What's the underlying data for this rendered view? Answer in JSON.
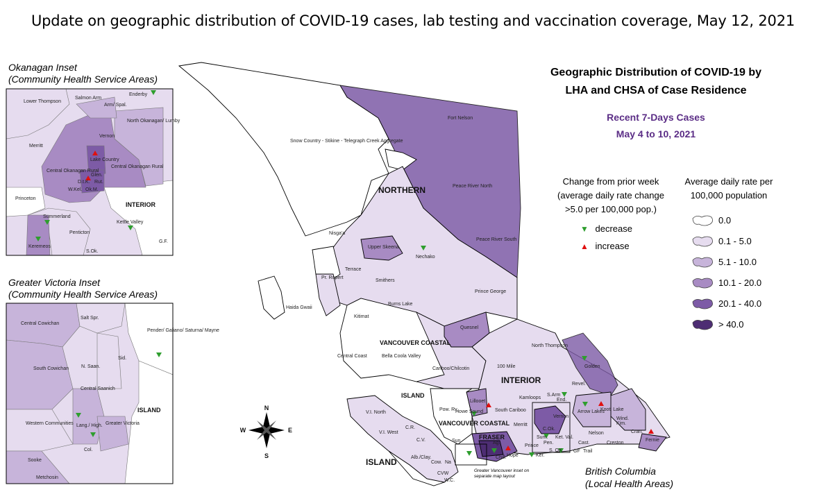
{
  "page_title": "Update on geographic distribution of COVID-19 cases, lab testing and vaccination coverage, May 12, 2021",
  "map_title": {
    "line1": "Geographic Distribution of COVID-19 by",
    "line2": "LHA and CHSA of Case Residence",
    "sub1": "Recent 7-Days Cases",
    "sub2": "May 4 to 10, 2021"
  },
  "colors": {
    "class0": "#ffffff",
    "class1": "#e6dcef",
    "class2": "#c7b4da",
    "class3": "#a88bc3",
    "class4": "#7d5ba6",
    "class5": "#4d2d73",
    "decrease": "#2e9e2e",
    "increase": "#e01010",
    "title_purple": "#5b2d86"
  },
  "change_legend": {
    "title1": "Change from prior week",
    "title2": "(average daily rate change",
    "title3": ">5.0 per 100,000 pop.)",
    "decrease_label": "decrease",
    "increase_label": "increase"
  },
  "rate_legend": {
    "title1": "Average daily rate per",
    "title2": "100,000 population",
    "items": [
      "0.0",
      "0.1 - 5.0",
      "5.1 - 10.0",
      "10.1 - 20.0",
      "20.1 - 40.0",
      "> 40.0"
    ]
  },
  "okanagan_inset": {
    "title1": "Okanagan Inset",
    "title2": "(Community Health Service Areas)",
    "labels": [
      "Lower Thompson",
      "Salmon Arm",
      "Enderby",
      "Arm/ Spal.",
      "North Okanagan/ Lumby",
      "Vernon",
      "Merritt",
      "Lake Country",
      "Central Okanagan Rural",
      "Central Okanagan Rural",
      "Glen.",
      "D.t.K.",
      "Rut.",
      "W.Kel.",
      "Ok.M.",
      "Princeton",
      "INTERIOR",
      "Summerland",
      "Kettle Valley",
      "Penticton",
      "Keremeos",
      "S.Ok.",
      "G.F."
    ]
  },
  "victoria_inset": {
    "title1": "Greater Victoria Inset",
    "title2": "(Community Health Service Areas)",
    "labels": [
      "Salt Spr.",
      "Central Cowichan",
      "Pender/ Galiano/ Saturna/ Mayne",
      "Sid.",
      "N. Saan.",
      "South Cowichan",
      "Central Saanich",
      "ISLAND",
      "Western Communities",
      "Lang./ High.",
      "Greater Victoria",
      "Col.",
      "Sooke",
      "Metchosin"
    ]
  },
  "main_map": {
    "region_labels": [
      "NORTHERN",
      "INTERIOR",
      "ISLAND",
      "ISLAND",
      "VANCOUVER COASTAL",
      "VANCOUVER COASTAL",
      "FRASER"
    ],
    "area_labels": [
      "Fort Nelson",
      "Snow Country - Stikine - Telegraph Creek Aggregate",
      "Peace River North",
      "Peace River South",
      "Nisga'a",
      "Upper Skeena",
      "Nechako",
      "Terrace",
      "Pr. Rupert",
      "Smithers",
      "Haida Gwaii",
      "Burns Lake",
      "Prince George",
      "Kitimat",
      "Quesnel",
      "Bella Coola Valley",
      "Central Coast",
      "Cariboo/Chilcotin",
      "100 Mile",
      "North Thompson",
      "Golden",
      "Revel.",
      "Kamloops",
      "S.Arm",
      "End.",
      "Lillooet",
      "South Cariboo",
      "Howe Sound",
      "Pow. Rv.",
      "V.I. North",
      "V.I. West",
      "C.R.",
      "Merritt",
      "Vernon",
      "Arrow Lakes",
      "Koot. Lake",
      "Wind.",
      "C.Ok.",
      "Sum.",
      "Pen.",
      "Ket. Val.",
      "Nelson",
      "Kim.",
      "Cran.",
      "Fernie",
      "Prince",
      "Ker.",
      "S. OK",
      "GF",
      "Trail",
      "Cast.",
      "Creston",
      "Sun.",
      "C.V.",
      "Alb./Clay.",
      "Chill.",
      "Hope",
      "Ag.",
      "Cow.",
      "Na",
      "CVW",
      "W.C."
    ],
    "compass_n": "N",
    "compass_s": "S",
    "compass_e": "E",
    "compass_w": "W",
    "gv_inset_note": "Greater Vancouver inset on separate map layout",
    "bc_label1": "British Columbia",
    "bc_label2": "(Local Health Areas)"
  }
}
